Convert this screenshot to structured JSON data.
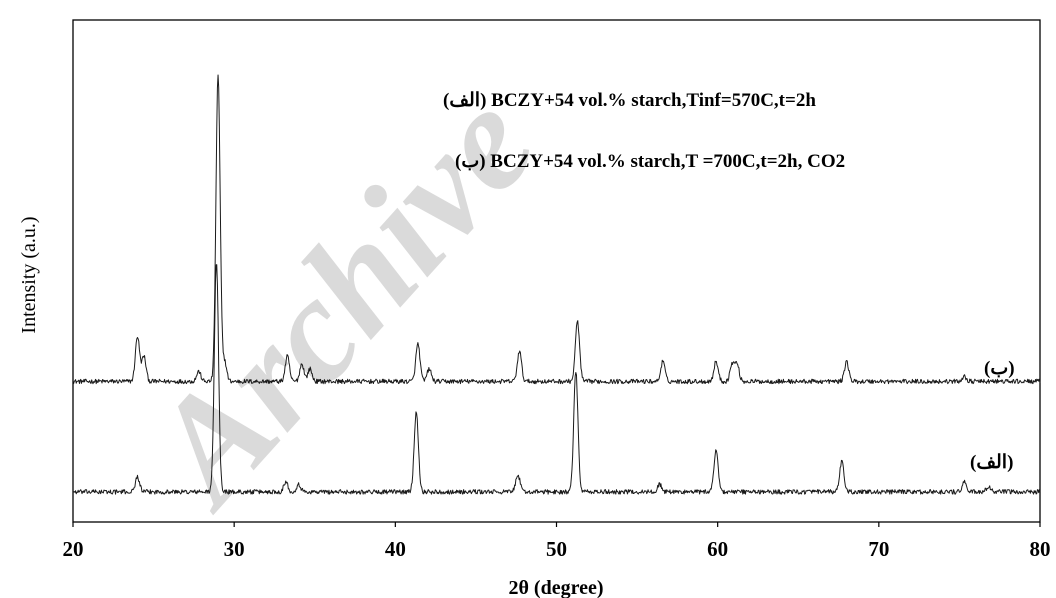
{
  "watermark": "Archive",
  "chart_data": {
    "type": "line",
    "xlabel": "2θ (degree)",
    "ylabel": "Intensity (a.u.)",
    "xlim": [
      20,
      80
    ],
    "xticks": [
      20,
      30,
      40,
      50,
      60,
      70,
      80
    ],
    "ylim": [
      0,
      100
    ],
    "grid": false,
    "legend_position": "top-right",
    "legend": [
      "(الف) BCZY+54 vol.% starch,Tinf=570C,t=2h",
      "(ب) BCZY+54 vol.% starch,T =700C,t=2h, CO2"
    ],
    "series": [
      {
        "name": "(ب)",
        "baseline": 28,
        "noise": 0.45,
        "peaks": [
          {
            "x": 24.0,
            "h": 9
          },
          {
            "x": 24.4,
            "h": 5
          },
          {
            "x": 27.8,
            "h": 2
          },
          {
            "x": 29.0,
            "h": 61
          },
          {
            "x": 29.4,
            "h": 4
          },
          {
            "x": 33.3,
            "h": 5
          },
          {
            "x": 34.2,
            "h": 3.5
          },
          {
            "x": 34.7,
            "h": 2.5
          },
          {
            "x": 41.4,
            "h": 7.5
          },
          {
            "x": 42.1,
            "h": 2.5
          },
          {
            "x": 47.7,
            "h": 6
          },
          {
            "x": 51.3,
            "h": 12
          },
          {
            "x": 56.6,
            "h": 4
          },
          {
            "x": 59.9,
            "h": 4
          },
          {
            "x": 60.9,
            "h": 3.5
          },
          {
            "x": 61.2,
            "h": 3.5
          },
          {
            "x": 68.0,
            "h": 4
          },
          {
            "x": 75.3,
            "h": 1
          }
        ]
      },
      {
        "name": "(الف)",
        "baseline": 6,
        "noise": 0.45,
        "peaks": [
          {
            "x": 24.0,
            "h": 3
          },
          {
            "x": 28.9,
            "h": 46
          },
          {
            "x": 33.2,
            "h": 2
          },
          {
            "x": 34.0,
            "h": 1.5
          },
          {
            "x": 41.3,
            "h": 16
          },
          {
            "x": 47.6,
            "h": 3.5
          },
          {
            "x": 51.2,
            "h": 24
          },
          {
            "x": 56.4,
            "h": 1.5
          },
          {
            "x": 59.9,
            "h": 8.5
          },
          {
            "x": 67.7,
            "h": 6
          },
          {
            "x": 75.3,
            "h": 2
          },
          {
            "x": 76.8,
            "h": 1
          }
        ]
      }
    ],
    "series_labels": [
      "(ب)",
      "(الف)"
    ]
  }
}
